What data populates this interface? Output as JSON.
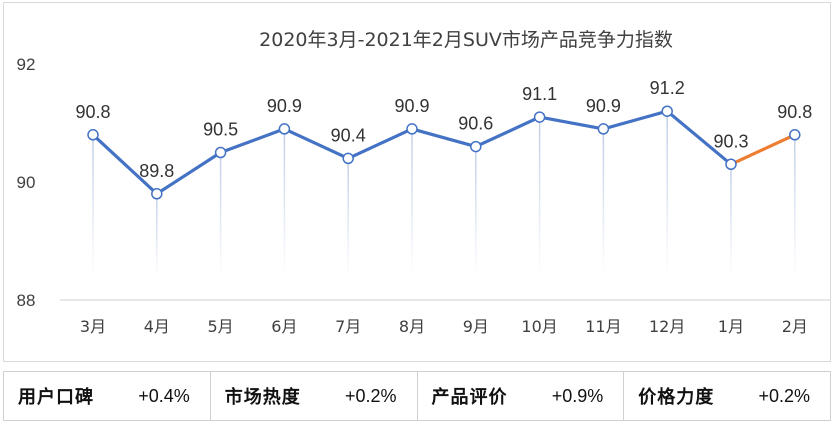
{
  "chart_data": {
    "type": "line",
    "title": "2020年3月-2021年2月SUV市场产品竞争力指数",
    "categories": [
      "3月",
      "4月",
      "5月",
      "6月",
      "7月",
      "8月",
      "9月",
      "10月",
      "11月",
      "12月",
      "1月",
      "2月"
    ],
    "series": [
      {
        "values": [
          90.8,
          89.8,
          90.5,
          90.9,
          90.4,
          90.9,
          90.6,
          91.1,
          90.9,
          91.2,
          90.3,
          90.8
        ]
      }
    ],
    "data_labels": [
      "90.8",
      "89.8",
      "90.5",
      "90.9",
      "90.4",
      "90.9",
      "90.6",
      "91.1",
      "90.9",
      "91.2",
      "90.3",
      "90.8"
    ],
    "ylim": [
      88,
      92
    ],
    "yticks": [
      "88",
      "90",
      "92"
    ],
    "grid": false,
    "colors": {
      "line": "#4472c4",
      "last_segment": "#ed7d31",
      "drop_line": "#c5d3ea"
    }
  },
  "metrics": [
    {
      "label": "用户口碑",
      "value": "+0.4%"
    },
    {
      "label": "市场热度",
      "value": "+0.2%"
    },
    {
      "label": "产品评价",
      "value": "+0.9%"
    },
    {
      "label": "价格力度",
      "value": "+0.2%"
    }
  ]
}
